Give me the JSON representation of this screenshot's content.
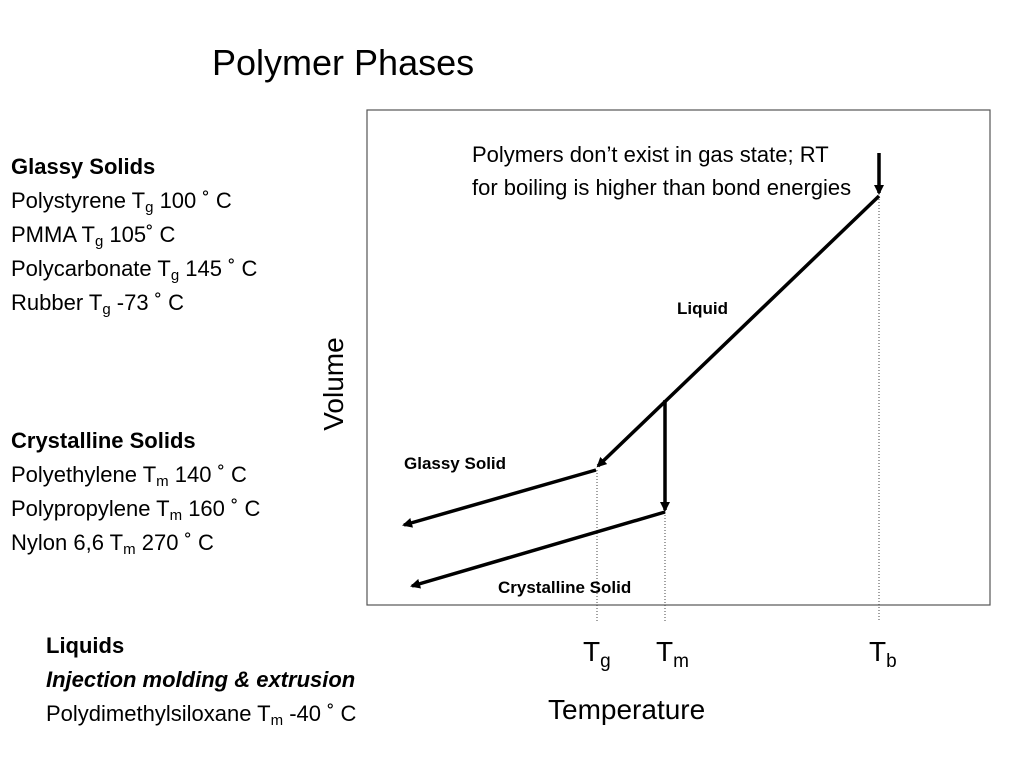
{
  "title": "Polymer Phases",
  "glassy_solids": {
    "heading": "Glassy Solids",
    "items": [
      {
        "name": "Polystyrene T",
        "sub": "g",
        "value": " 100 ˚ C"
      },
      {
        "name": "PMMA T",
        "sub": "g",
        "value": " 105˚ C"
      },
      {
        "name": "Polycarbonate T",
        "sub": "g",
        "value": " 145 ˚ C"
      },
      {
        "name": "Rubber T",
        "sub": "g",
        "value": " -73 ˚ C"
      }
    ]
  },
  "crystalline_solids": {
    "heading": "Crystalline Solids",
    "items": [
      {
        "name": "Polyethylene T",
        "sub": "m",
        "value": " 140 ˚ C"
      },
      {
        "name": "Polypropylene T",
        "sub": "m",
        "value": " 160 ˚ C"
      },
      {
        "name": "Nylon 6,6 T",
        "sub": "m",
        "value": " 270 ˚ C"
      }
    ]
  },
  "liquids": {
    "heading": "Liquids",
    "subheading": "Injection molding & extrusion",
    "item": {
      "name": "Polydimethylsiloxane T",
      "sub": "m",
      "value": " -40 ˚ C"
    }
  },
  "diagram": {
    "y_axis_label": "Volume",
    "x_axis_label": "Temperature",
    "ticks": [
      {
        "main": "T",
        "sub": "g"
      },
      {
        "main": "T",
        "sub": "m"
      },
      {
        "main": "T",
        "sub": "b"
      }
    ],
    "annotation": "Polymers don’t exist in gas state; RT for boiling is higher than bond energies",
    "curve_labels": {
      "liquid": "Liquid",
      "glassy": "Glassy Solid",
      "crystalline": "Crystalline Solid"
    }
  }
}
